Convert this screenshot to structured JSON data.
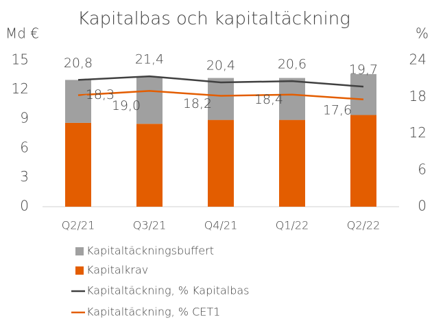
{
  "chart_data": {
    "type": "bar",
    "title": "Kapitalbas och kapitaltäckning",
    "y_label": "Md €",
    "y2_label": "%",
    "categories": [
      "Q2/21",
      "Q3/21",
      "Q4/21",
      "Q1/22",
      "Q2/22"
    ],
    "stacked": true,
    "series": [
      {
        "name": "Kapitaltäckningsbuffert",
        "type": "bar",
        "color": "#a0a0a0",
        "values": [
          4.4,
          4.8,
          4.3,
          4.3,
          4.2
        ]
      },
      {
        "name": "Kapitalkrav",
        "type": "bar",
        "color": "#e35d00",
        "values": [
          8.6,
          8.5,
          8.9,
          8.9,
          9.4
        ]
      },
      {
        "name": "Kapitaltäckning, % Kapitalbas",
        "type": "line",
        "axis": "y2",
        "color": "#404040",
        "values": [
          20.8,
          21.4,
          20.4,
          20.6,
          19.7
        ],
        "value_labels": [
          "20,8",
          "21,4",
          "20,4",
          "20,6",
          "19,7"
        ]
      },
      {
        "name": "Kapitaltäckning, %  CET1",
        "type": "line",
        "axis": "y2",
        "color": "#e35d00",
        "values": [
          18.3,
          19.0,
          18.2,
          18.4,
          17.6
        ],
        "value_labels": [
          "18,3",
          "19,0",
          "18,2",
          "18,4",
          "17,6"
        ]
      }
    ],
    "ylim": [
      0,
      15
    ],
    "yticks": [
      0,
      3,
      6,
      9,
      12,
      15
    ],
    "y2lim": [
      0,
      24
    ],
    "y2ticks": [
      0,
      6,
      12,
      18,
      24
    ],
    "grid": false
  }
}
